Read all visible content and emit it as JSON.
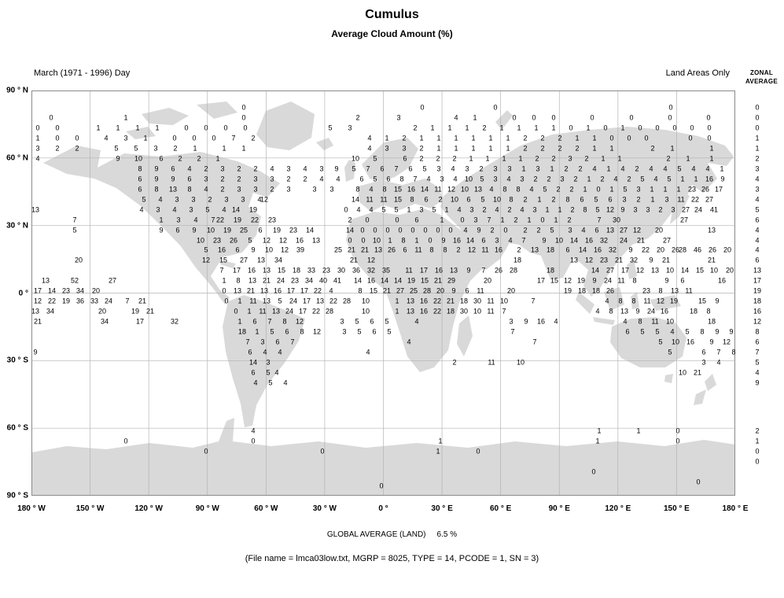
{
  "title": "Cumulus",
  "subtitle": "Average Cloud Amount (%)",
  "header": {
    "left": "March (1971 - 1996) Day",
    "right": "Land Areas Only",
    "zonal_line1": "ZONAL",
    "zonal_line2": "AVERAGE"
  },
  "footer": {
    "global_average_label": "GLOBAL AVERAGE (LAND)",
    "global_average_value": "6.5 %",
    "file_info": "(File name = lmca03low.txt, MGRP = 8025, TYPE = 14, PCODE = 1, SN = 3)"
  },
  "colors": {
    "land": "#d9d9d9",
    "grid": "#b3b3b3",
    "frame": "#8a8a8a",
    "text": "#000000"
  },
  "chart_data": {
    "type": "heatmap",
    "projection": "equirectangular world map, land areas only",
    "title": "Cumulus",
    "subtitle": "Average Cloud Amount (%)",
    "period": "March (1971 - 1996) Day",
    "region": "Land Areas Only",
    "values_unit": "percent cloud amount",
    "global_average_percent": 6.5,
    "x_ticks": [
      "180 ° W",
      "150 ° W",
      "120 ° W",
      "90 ° W",
      "60 ° W",
      "30 ° W",
      "0 °",
      "30 ° E",
      "60 ° E",
      "90 ° E",
      "120 ° E",
      "150 ° E",
      "180 ° E"
    ],
    "y_ticks": [
      "90 ° N",
      "60 ° N",
      "30 ° N",
      "0 °",
      "30 ° S",
      "60 ° S",
      "90 ° S"
    ],
    "zonal_averages": [
      [
        137,
        "0"
      ],
      [
        150,
        "0"
      ],
      [
        163,
        "0"
      ],
      [
        176,
        "1"
      ],
      [
        189,
        "1"
      ],
      [
        202,
        "2"
      ],
      [
        215,
        "3"
      ],
      [
        228,
        "4"
      ],
      [
        241,
        "3"
      ],
      [
        254,
        "4"
      ],
      [
        267,
        "5"
      ],
      [
        280,
        "6"
      ],
      [
        293,
        "4"
      ],
      [
        306,
        "4"
      ],
      [
        318,
        "4"
      ],
      [
        331,
        "6"
      ],
      [
        344,
        "13"
      ],
      [
        357,
        "17"
      ],
      [
        370,
        "19"
      ],
      [
        383,
        "18"
      ],
      [
        396,
        "16"
      ],
      [
        409,
        "12"
      ],
      [
        422,
        "8"
      ],
      [
        435,
        "6"
      ],
      [
        448,
        "7"
      ],
      [
        461,
        "5"
      ],
      [
        474,
        "4"
      ],
      [
        487,
        "9"
      ],
      [
        548,
        "2"
      ],
      [
        561,
        "1"
      ],
      [
        574,
        "0"
      ],
      [
        587,
        "0"
      ]
    ],
    "grid_rows": [
      {
        "y": 137,
        "c": [
          [
            310,
            0,
            "0"
          ],
          [
            537,
            0,
            "0"
          ],
          [
            630,
            0,
            "0"
          ],
          [
            853,
            0,
            "0"
          ]
        ]
      },
      {
        "y": 150,
        "c": [
          [
            65,
            0,
            "0"
          ],
          [
            160,
            0,
            "1"
          ],
          [
            310,
            0,
            "0"
          ],
          [
            455,
            0,
            "2"
          ],
          [
            507,
            0,
            "3"
          ],
          [
            580,
            24,
            "4 1"
          ],
          [
            654,
            25,
            "0 0 0"
          ],
          [
            753,
            0,
            "0"
          ],
          [
            803,
            0,
            "0"
          ],
          [
            852,
            0,
            "0"
          ],
          [
            901,
            0,
            "0"
          ]
        ]
      },
      {
        "y": 163,
        "c": [
          [
            48,
            25,
            "0 0"
          ],
          [
            125,
            25,
            "1 1 1 1"
          ],
          [
            237,
            25,
            "0 0 0 0"
          ],
          [
            420,
            25,
            "5 3"
          ],
          [
            528,
            22,
            "2 1 1 1 2 1 1 1 1 0 1 0 1 0 0 0 0 0"
          ]
        ]
      },
      {
        "y": 176,
        "c": [
          [
            48,
            25,
            "1 0 0"
          ],
          [
            135,
            25,
            "4 3 1"
          ],
          [
            222,
            25,
            "0 0 0"
          ],
          [
            297,
            25,
            "7 2"
          ],
          [
            470,
            22,
            "4 1 2 1 1 1 1 1 1 2 2 2 1 1 0 0 0"
          ],
          [
            878,
            24,
            "0 0"
          ]
        ]
      },
      {
        "y": 189,
        "c": [
          [
            48,
            25,
            "3 2 2"
          ],
          [
            148,
            25,
            "5 5 3 2 1"
          ],
          [
            285,
            25,
            "1 1"
          ],
          [
            470,
            22,
            "4 3 3 2 1 1 1 1 1 2 2 2 2 1 1"
          ],
          [
            830,
            25,
            "2 1"
          ],
          [
            905,
            0,
            "1"
          ]
        ]
      },
      {
        "y": 202,
        "c": [
          [
            48,
            0,
            "4"
          ],
          [
            150,
            26,
            "9 10"
          ],
          [
            205,
            24,
            "6 2 2 1"
          ],
          [
            452,
            25,
            "10 5"
          ],
          [
            515,
            21,
            "6 2 2 2 1 1 1 1 2 2 3 2 1 1"
          ],
          [
            850,
            25,
            "2 1"
          ],
          [
            905,
            0,
            "1"
          ]
        ]
      },
      {
        "y": 215,
        "c": [
          [
            178,
            21,
            "8 9 6 4 2 3 2 2 4 3 4 3"
          ],
          [
            428,
            22,
            "9 5"
          ],
          [
            468,
            18,
            "7 6 7 6 5 3 4 3 2 3 3 1 3 1 2 2 4 1 4 2 4 4 5 4 4 1"
          ]
        ]
      },
      {
        "y": 228,
        "c": [
          [
            178,
            21,
            "6 9 9 6 3 2 2 3 3 2 2 4 4"
          ],
          [
            460,
            17,
            "6 5 6 8 7 4 3 4 10 5 3 4 3 2 2 3 2 1 2 4 2 5 4 5 1 1 16 9"
          ]
        ]
      },
      {
        "y": 241,
        "c": [
          [
            178,
            21,
            "6 8 13 8 4 2 3 3 2 3"
          ],
          [
            400,
            22,
            "3 3"
          ],
          [
            455,
            17,
            "8 4 8 15 16 14 11 12 10 13 4 8 8 4 5 2 2 1 0 1 5 3 1 1 1 23 26 17"
          ]
        ]
      },
      {
        "y": 254,
        "c": [
          [
            183,
            21,
            "5 4 3 3 2 3 3 4"
          ],
          [
            336,
            0,
            "12"
          ],
          [
            452,
            18,
            "14 11 11 15 8 6 2 10 6 5 10 8 2 1 2 8 6 5 6 3 2 1 3 11 22 27"
          ]
        ]
      },
      {
        "y": 267,
        "c": [
          [
            45,
            0,
            "13"
          ],
          [
            180,
            21,
            "4 3 4 3 5 4"
          ],
          [
            300,
            22,
            "14 19"
          ],
          [
            440,
            16,
            "0 4 4 5 5 1 3 5 1 4 3 2 4 2 4 3 1 1 2 8 5 12 9 3 3 2 3 27 24"
          ],
          [
            908,
            0,
            "41"
          ]
        ]
      },
      {
        "y": 280,
        "c": [
          [
            95,
            0,
            "7"
          ],
          [
            205,
            22,
            "1 3 4 7"
          ],
          [
            280,
            22,
            "22 19 22 23"
          ],
          [
            445,
            22,
            "2 0"
          ],
          [
            505,
            25,
            "0 6"
          ],
          [
            562,
            0,
            "1"
          ],
          [
            588,
            17,
            "0 3 7 1 2 1 0 1 2"
          ],
          [
            762,
            22,
            "7 30"
          ],
          [
            870,
            0,
            "27"
          ]
        ]
      },
      {
        "y": 293,
        "c": [
          [
            95,
            0,
            "5"
          ],
          [
            205,
            21,
            "9 6 9 10 19 25 6 19 23 14"
          ],
          [
            445,
            16,
            "14 0 0 0 0 0 0 0 0"
          ],
          [
            592,
            17,
            "4 9 2 0"
          ],
          [
            668,
            17,
            "2 2 5"
          ],
          [
            725,
            17,
            "3 4 6 13 27 12"
          ],
          [
            838,
            0,
            "20"
          ],
          [
            905,
            0,
            "13"
          ]
        ]
      },
      {
        "y": 306,
        "c": [
          [
            255,
            21,
            "10 23 26 5 12 12 16 13"
          ],
          [
            445,
            17,
            "0 0 10 1 8 1 0 9 16 14 6 3 4 7"
          ],
          [
            692,
            19,
            "9 10 14 16 32"
          ],
          [
            793,
            22,
            "24 21"
          ],
          [
            848,
            0,
            "27"
          ]
        ]
      },
      {
        "y": 318,
        "c": [
          [
            262,
            20,
            "5 16 6 9 10 12 39"
          ],
          [
            430,
            17,
            "25 21 21 13 26 6 11 8 8 2 12 11 16"
          ],
          [
            660,
            20,
            "2 13 18"
          ],
          [
            722,
            19,
            "6 14 16 32"
          ],
          [
            802,
            19,
            "9 22 20 26"
          ],
          [
            868,
            19,
            "28 46 26 20"
          ]
        ]
      },
      {
        "y": 331,
        "c": [
          [
            100,
            0,
            "20"
          ],
          [
            262,
            22,
            "12 15"
          ],
          [
            310,
            22,
            "27 13 34"
          ],
          [
            450,
            22,
            "21 12"
          ],
          [
            658,
            0,
            "18"
          ],
          [
            730,
            19,
            "13 12 23 21 32"
          ],
          [
            828,
            19,
            "9 21"
          ],
          [
            905,
            0,
            "21"
          ]
        ]
      },
      {
        "y": 344,
        "c": [
          [
            282,
            19,
            "7 17 16 13 15"
          ],
          [
            377,
            19,
            "18 33 23 30 36 32 35"
          ],
          [
            520,
            19,
            "11 17 16 13 9 7 26 28"
          ],
          [
            700,
            0,
            "18"
          ],
          [
            757,
            19,
            "14 27 17 12 13 10 14 15"
          ],
          [
            908,
            0,
            "10"
          ],
          [
            928,
            0,
            "20"
          ]
        ]
      },
      {
        "y": 357,
        "c": [
          [
            58,
            0,
            "13"
          ],
          [
            95,
            0,
            "52"
          ],
          [
            143,
            0,
            "27"
          ],
          [
            285,
            18,
            "1 8 13 21 24 23 34 40 41"
          ],
          [
            455,
            17,
            "14 16 14 14 19 15 21 29"
          ],
          [
            620,
            0,
            "20"
          ],
          [
            688,
            17,
            "17 15 12 19 9 24 11 8"
          ],
          [
            848,
            20,
            "9 6"
          ],
          [
            918,
            0,
            "16"
          ]
        ]
      },
      {
        "y": 370,
        "c": [
          [
            48,
            18,
            "17 14 23 34"
          ],
          [
            122,
            0,
            "20"
          ],
          [
            285,
            17,
            "0 13 21 13 16 17 17 22 4"
          ],
          [
            458,
            17,
            "8 15 21 27 25 28 20 9 6 11"
          ],
          [
            650,
            0,
            "20"
          ],
          [
            722,
            18,
            "19 18 18 26"
          ],
          [
            822,
            18,
            "23 8 13 11"
          ]
        ]
      },
      {
        "y": 383,
        "c": [
          [
            48,
            18,
            "12 22 19 36 33 24"
          ],
          [
            162,
            19,
            "7 21"
          ],
          [
            288,
            17,
            "0 1 11 13 5 24 17 13 22 28"
          ],
          [
            465,
            0,
            "10"
          ],
          [
            505,
            17,
            "1 13 16 22 21 18 30 11 10"
          ],
          [
            678,
            0,
            "7"
          ],
          [
            772,
            17,
            "4 8 8 11 12 19"
          ],
          [
            893,
            19,
            "15 9"
          ]
        ]
      },
      {
        "y": 396,
        "c": [
          [
            45,
            19,
            "13 34"
          ],
          [
            130,
            0,
            "20"
          ],
          [
            172,
            19,
            "19 21"
          ],
          [
            300,
            17,
            "0 1 11 13 24 17 22 28"
          ],
          [
            465,
            0,
            "10"
          ],
          [
            505,
            17,
            "1 13 16 22 18 30 10 11 7"
          ],
          [
            760,
            17,
            "4 8 13 9 24 16"
          ],
          [
            882,
            19,
            "18 8"
          ]
        ]
      },
      {
        "y": 409,
        "c": [
          [
            48,
            0,
            "21"
          ],
          [
            133,
            0,
            "34"
          ],
          [
            178,
            0,
            "17"
          ],
          [
            222,
            0,
            "32"
          ],
          [
            305,
            19,
            "1 6 7 8 12"
          ],
          [
            435,
            19,
            "3 5 6 5"
          ],
          [
            530,
            0,
            "4"
          ],
          [
            650,
            19,
            "3 9 16 4"
          ],
          [
            795,
            19,
            "4 8 11 10"
          ],
          [
            905,
            0,
            "18"
          ]
        ]
      },
      {
        "y": 422,
        "c": [
          [
            308,
            19,
            "18 1 5 6 8 12"
          ],
          [
            438,
            19,
            "3 5 6 5"
          ],
          [
            652,
            0,
            "7"
          ],
          [
            798,
            19,
            "6 5 5 4 5 8 9"
          ],
          [
            930,
            0,
            "9"
          ]
        ]
      },
      {
        "y": 435,
        "c": [
          [
            315,
            19,
            "7 3 6 7"
          ],
          [
            520,
            0,
            "4"
          ],
          [
            680,
            0,
            "7"
          ],
          [
            840,
            19,
            "5 10 16"
          ],
          [
            905,
            19,
            "9 12"
          ]
        ]
      },
      {
        "y": 448,
        "c": [
          [
            45,
            0,
            "9"
          ],
          [
            318,
            19,
            "6 4 4"
          ],
          [
            468,
            0,
            "4"
          ],
          [
            852,
            0,
            "5"
          ],
          [
            895,
            19,
            "6 7 8"
          ]
        ]
      },
      {
        "y": 461,
        "c": [
          [
            322,
            19,
            "14 3"
          ],
          [
            578,
            0,
            "2"
          ],
          [
            625,
            0,
            "11"
          ],
          [
            662,
            0,
            "10"
          ],
          [
            895,
            19,
            "3 4"
          ]
        ]
      },
      {
        "y": 474,
        "c": [
          [
            322,
            19,
            "6 5"
          ],
          [
            352,
            0,
            "4"
          ],
          [
            868,
            19,
            "10 21"
          ]
        ]
      },
      {
        "y": 487,
        "c": [
          [
            325,
            19,
            "4 5 4"
          ]
        ]
      },
      {
        "y": 548,
        "c": [
          [
            322,
            0,
            "4"
          ],
          [
            762,
            0,
            "1"
          ],
          [
            812,
            0,
            "1"
          ],
          [
            862,
            0,
            "0"
          ]
        ]
      },
      {
        "y": 561,
        "c": [
          [
            160,
            0,
            "0"
          ],
          [
            322,
            0,
            "0"
          ],
          [
            560,
            0,
            "1"
          ],
          [
            760,
            0,
            "1"
          ],
          [
            862,
            0,
            "0"
          ]
        ]
      },
      {
        "y": 574,
        "c": [
          [
            262,
            0,
            "0"
          ],
          [
            410,
            0,
            "0"
          ],
          [
            557,
            0,
            "1"
          ],
          [
            608,
            0,
            "0"
          ]
        ]
      },
      {
        "y": 600,
        "c": [
          [
            755,
            0,
            "0"
          ]
        ]
      },
      {
        "y": 613,
        "c": [
          [
            888,
            0,
            "0"
          ]
        ]
      },
      {
        "y": 618,
        "c": [
          [
            485,
            0,
            "0"
          ]
        ]
      }
    ]
  }
}
